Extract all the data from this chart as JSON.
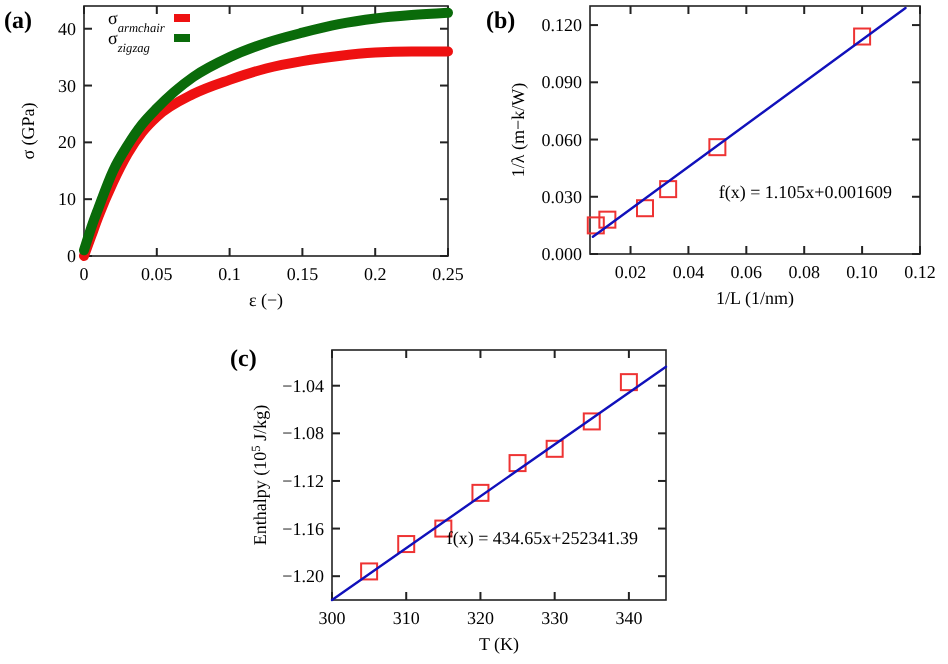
{
  "chart_data": [
    {
      "type": "line",
      "title": "(a)",
      "xlabel": "ε (−)",
      "ylabel": "σ (GPa)",
      "xlim": [
        0,
        0.25
      ],
      "ylim": [
        0,
        44
      ],
      "xticks": [
        0,
        0.05,
        0.1,
        0.15,
        0.2,
        0.25
      ],
      "yticks": [
        0,
        10,
        20,
        30,
        40
      ],
      "legend": "top left",
      "grid": false,
      "series": [
        {
          "name": "σ$_{armchair}$",
          "color": "#ee1111",
          "x": [
            0,
            0.005,
            0.01,
            0.02,
            0.03,
            0.04,
            0.05,
            0.075,
            0.1,
            0.125,
            0.15,
            0.175,
            0.2,
            0.225,
            0.25
          ],
          "values": [
            0,
            3.5,
            7,
            13,
            18,
            21.8,
            24.5,
            28.5,
            31,
            33,
            34.3,
            35.2,
            35.8,
            36,
            36
          ]
        },
        {
          "name": "σ$_{zigzag}$",
          "color": "#0a6b0a",
          "x": [
            0,
            0.005,
            0.01,
            0.02,
            0.03,
            0.04,
            0.05,
            0.075,
            0.1,
            0.125,
            0.15,
            0.175,
            0.2,
            0.225,
            0.25
          ],
          "values": [
            1,
            5,
            8.5,
            15,
            19.5,
            23.2,
            26,
            31.5,
            35,
            37.5,
            39.3,
            40.8,
            41.8,
            42.4,
            42.8
          ]
        }
      ]
    },
    {
      "type": "scatter",
      "title": "(b)",
      "xlabel": "1/L (1/nm)",
      "ylabel": "1/λ (m−k/W)",
      "xlim": [
        0.006,
        0.12
      ],
      "ylim": [
        0,
        0.13
      ],
      "xticks": [
        0.02,
        0.04,
        0.06,
        0.08,
        {
          "value": 0.1,
          "label": "0.10"
        },
        {
          "value": 0.12,
          "label": "0.12"
        }
      ],
      "yticks": [
        {
          "value": 0,
          "label": "0.000"
        },
        {
          "value": 0.03,
          "label": "0.030"
        },
        {
          "value": 0.06,
          "label": "0.060"
        },
        {
          "value": 0.09,
          "label": "0.090"
        },
        {
          "value": 0.12,
          "label": "0.120"
        }
      ],
      "grid": false,
      "annotations": [
        "f(x) = 1.105x+0.001609"
      ],
      "series": [
        {
          "marker": "square",
          "color": "#ee3333",
          "x": [
            0.008,
            0.012,
            0.025,
            0.033,
            0.05,
            0.1
          ],
          "values": [
            0.015,
            0.018,
            0.024,
            0.034,
            0.056,
            0.114
          ]
        },
        {
          "type": "line",
          "color": "#1111bb",
          "x": [
            0.007,
            0.115
          ],
          "values": [
            0.009,
            0.129
          ]
        }
      ]
    },
    {
      "type": "scatter",
      "title": "(c)",
      "xlabel": "T (K)",
      "ylabel": "Enthalpy (10$^{5}$ J/kg)",
      "xlim": [
        300,
        345
      ],
      "ylim": [
        -1.22,
        -1.01
      ],
      "xticks": [
        300,
        310,
        320,
        330,
        340
      ],
      "yticks": [
        {
          "value": -1.2,
          "label": "−1.20"
        },
        {
          "value": -1.16,
          "label": "−1.16"
        },
        {
          "value": -1.12,
          "label": "−1.12"
        },
        {
          "value": -1.08,
          "label": "−1.08"
        },
        {
          "value": -1.04,
          "label": "−1.04"
        }
      ],
      "grid": false,
      "annotations": [
        "f(x) = 434.65x+252341.39"
      ],
      "series": [
        {
          "marker": "square",
          "color": "#ee3333",
          "x": [
            305,
            310,
            315,
            320,
            325,
            330,
            335,
            340
          ],
          "values": [
            -1.196,
            -1.173,
            -1.16,
            -1.13,
            -1.105,
            -1.093,
            -1.07,
            -1.037
          ]
        },
        {
          "type": "line",
          "color": "#1111bb",
          "x": [
            300,
            345
          ],
          "values": [
            -1.22,
            -1.024
          ]
        }
      ]
    }
  ]
}
